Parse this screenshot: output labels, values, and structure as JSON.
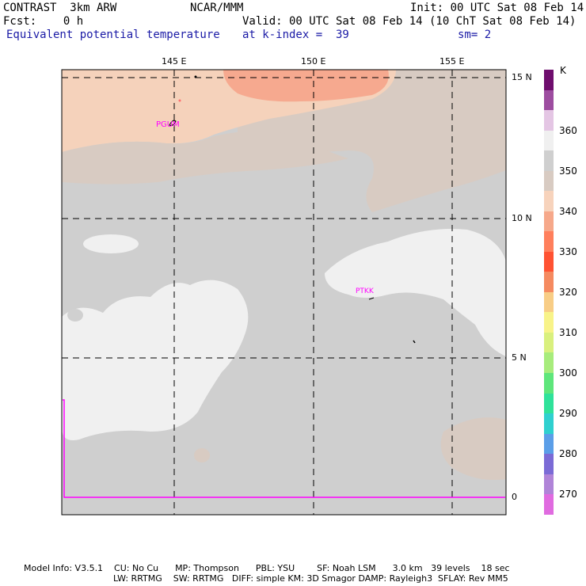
{
  "header": {
    "model": "CONTRAST  3km ARW",
    "org": "NCAR/MMM",
    "init": "Init: 00 UTC Sat 08 Feb 14",
    "fcst": "Fcst:    0 h",
    "valid": "Valid: 00 UTC Sat 08 Feb 14 (10 ChT Sat 08 Feb 14)",
    "field": "Equivalent potential temperature",
    "level": "at k-index =  39",
    "smooth": "sm= 2"
  },
  "map": {
    "lon_labels": [
      "145 E",
      "150 E",
      "155 E"
    ],
    "lat_labels": [
      "15 N",
      "10 N",
      "5 N",
      "0"
    ],
    "stations": [
      "PGUM",
      "PTKK"
    ],
    "colors": {
      "land_peach": "#f5d2bb",
      "salmon": "#f6a98f",
      "taupe": "#d7cdc6",
      "gray": "#d0d0d0",
      "white": "#f0f0f0",
      "background": "#c9c9c9",
      "station": "#ff00ff"
    }
  },
  "legend": {
    "unit": "K",
    "labels": [
      "360",
      "350",
      "340",
      "330",
      "320",
      "310",
      "300",
      "290",
      "280",
      "270"
    ],
    "colors": [
      "#6f0e6e",
      "#9d4da0",
      "#e4c6e4",
      "#f0f0f0",
      "#cfcfcf",
      "#d8cbc2",
      "#f7d3bc",
      "#f6a88a",
      "#ff7f5c",
      "#ff5232",
      "#f58a60",
      "#f8cd86",
      "#f8f389",
      "#d9f07e",
      "#a7ec7c",
      "#5ee67b",
      "#2fe29a",
      "#2fd0cf",
      "#5b9ee8",
      "#7b6bd6",
      "#b084d8",
      "#e06be0"
    ]
  },
  "footer": {
    "line1": "Model Info: V3.5.1    CU: No Cu      MP: Thompson      PBL: YSU        SF: Noah LSM      3.0 km   39 levels    18 sec",
    "line2": "LW: RRTMG    SW: RRTMG   DIFF: simple KM: 3D Smagor DAMP: Rayleigh3  SFLAY: Rev MM5"
  }
}
